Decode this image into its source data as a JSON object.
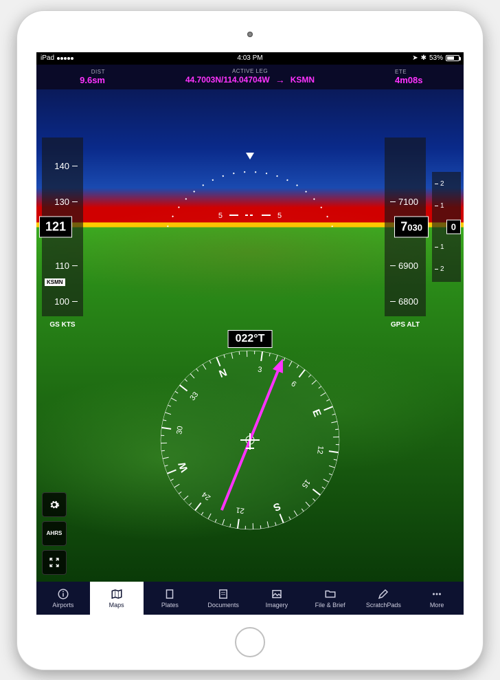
{
  "status_bar": {
    "device": "iPad",
    "carrier_wifi": "wifi",
    "time": "4:03 PM",
    "bluetooth": true,
    "battery_pct": "53%",
    "location_icon": "location-arrow-icon"
  },
  "flight_header": {
    "dist_label": "DIST",
    "dist_value": "9.6sm",
    "active_leg_label": "ACTIVE LEG",
    "position": "44.7003N/114.04704W",
    "destination": "KSMN",
    "ete_label": "ETE",
    "ete_value": "4m08s",
    "accent_color": "#ff33ff"
  },
  "pfd": {
    "sky_color_top": "#0a1a5a",
    "sky_color_horizon": "#1a4ab0",
    "terrain_warning_color": "#d00000",
    "terrain_caution_color": "#ffcc00",
    "terrain_color": "#2a8a18",
    "pitch_ladder": {
      "left_label": "5",
      "right_label": "5"
    },
    "airspeed": {
      "readout": "121",
      "ticks": [
        "140",
        "130",
        "110",
        "100"
      ],
      "unit_label": "GS KTS"
    },
    "waypoint_tag": "KSMN",
    "altitude": {
      "readout": "7030",
      "readout_prefix": "7",
      "readout_suffix": "030",
      "ticks": [
        "7100",
        "6900",
        "6800"
      ],
      "unit_label": "GPS ALT"
    },
    "vsi": {
      "readout": "0",
      "ticks_up": [
        "2",
        "1"
      ],
      "ticks_down": [
        "1",
        "2"
      ]
    },
    "hsi": {
      "heading_readout": "022°T",
      "compass_cardinals": {
        "N": "N",
        "E": "E",
        "S": "S",
        "W": "W"
      },
      "compass_numbers": [
        "3",
        "6",
        "12",
        "15",
        "21",
        "24",
        "30",
        "33"
      ],
      "ring_bg": "rgba(50,120,40,0.35)",
      "needle_color": "#ff33ff"
    }
  },
  "side_controls": {
    "ahrs_label": "AHRS",
    "gear_icon": "gear-icon",
    "collapse_icon": "arrows-in-icon"
  },
  "tabbar": {
    "items": [
      {
        "label": "Airports",
        "icon": "i-in-circle-icon"
      },
      {
        "label": "Maps",
        "icon": "map-icon"
      },
      {
        "label": "Plates",
        "icon": "rectangle-icon"
      },
      {
        "label": "Documents",
        "icon": "document-icon"
      },
      {
        "label": "Imagery",
        "icon": "imagery-icon"
      },
      {
        "label": "File & Brief",
        "icon": "folder-icon"
      },
      {
        "label": "ScratchPads",
        "icon": "pencil-icon"
      },
      {
        "label": "More",
        "icon": "dots-icon"
      }
    ],
    "active_index": 1,
    "bg_color": "#0d1230"
  }
}
